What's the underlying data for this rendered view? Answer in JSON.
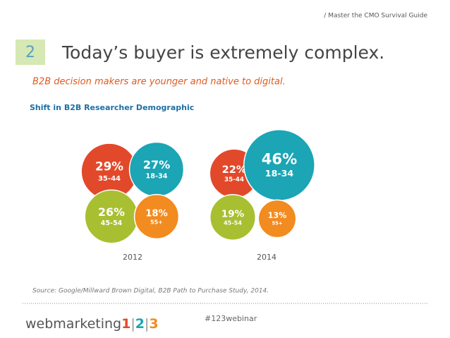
{
  "header": {
    "breadcrumb": "/ Master the CMO Survival Guide",
    "slide_number": "2",
    "title": "Today’s buyer is extremely complex.",
    "subtitle": "B2B decision makers are younger and native to digital."
  },
  "figure": {
    "title": "Shift in B2B Researcher Demographic",
    "source": "Source: Google/Millward Brown Digital, B2B Path to Purchase Study, 2014."
  },
  "chart_data": [
    {
      "type": "bubble",
      "title": "2012",
      "categories": [
        "35-44",
        "18-34",
        "45-54",
        "55+"
      ],
      "values": [
        29,
        27,
        26,
        18
      ],
      "value_labels": [
        "29%",
        "27%",
        "26%",
        "18%"
      ],
      "colors": [
        "#e2492a",
        "#1ba5b5",
        "#a8bf31",
        "#f28b20"
      ]
    },
    {
      "type": "bubble",
      "title": "2014",
      "categories": [
        "35-44",
        "18-34",
        "45-54",
        "55+"
      ],
      "values": [
        22,
        46,
        19,
        13
      ],
      "value_labels": [
        "22%",
        "46%",
        "19%",
        "13%"
      ],
      "colors": [
        "#e2492a",
        "#1ba5b5",
        "#a8bf31",
        "#f28b20"
      ]
    }
  ],
  "footer": {
    "hashtag": "#123webinar",
    "logo_parts": [
      "webmarketing",
      "1",
      "|",
      "2",
      "|",
      "3"
    ]
  }
}
